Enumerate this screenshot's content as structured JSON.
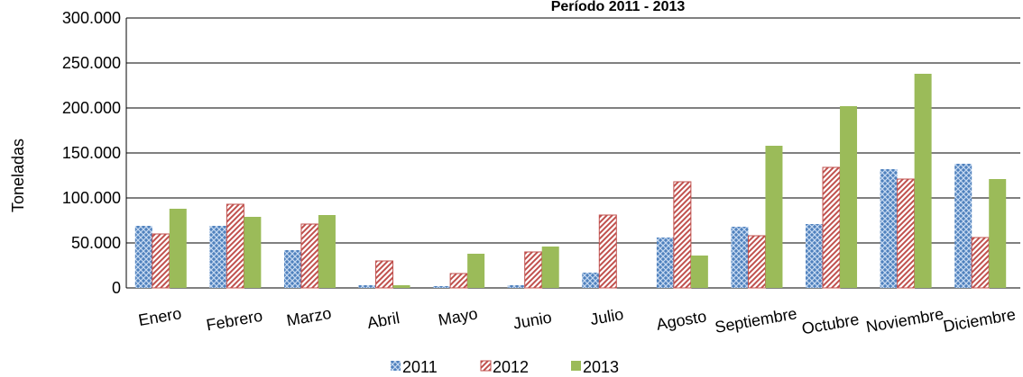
{
  "chart_data": {
    "type": "bar",
    "title": "Período  2011 - 2013",
    "y_label": "Toneladas",
    "categories": [
      "Enero",
      "Febrero",
      "Marzo",
      "Abril",
      "Mayo",
      "Junio",
      "Julio",
      "Agosto",
      "Septiembre",
      "Octubre",
      "Noviembre",
      "Diciembre"
    ],
    "series": [
      {
        "name": "2011",
        "color": "#4f81bd",
        "values": [
          69000,
          69000,
          42000,
          3000,
          2000,
          3000,
          17000,
          56000,
          68000,
          71000,
          132000,
          138000
        ]
      },
      {
        "name": "2012",
        "color": "#c0504d",
        "values": [
          60000,
          93000,
          71000,
          30000,
          16000,
          40000,
          81000,
          118000,
          58000,
          134000,
          121000,
          56000
        ]
      },
      {
        "name": "2013",
        "color": "#9bbb59",
        "values": [
          88000,
          79000,
          81000,
          3000,
          38000,
          46000,
          null,
          36000,
          158000,
          202000,
          238000,
          121000
        ]
      }
    ],
    "ylim": [
      0,
      300000
    ],
    "yticks": [
      0,
      {
        "value": 50000,
        "label": "50.000"
      },
      {
        "value": 100000,
        "label": "100.000"
      },
      {
        "value": 150000,
        "label": "150.000"
      },
      {
        "value": 200000,
        "label": "200.000"
      },
      {
        "value": 250000,
        "label": "250.000"
      },
      {
        "value": 300000,
        "label": "300.000"
      }
    ],
    "grid": true
  }
}
